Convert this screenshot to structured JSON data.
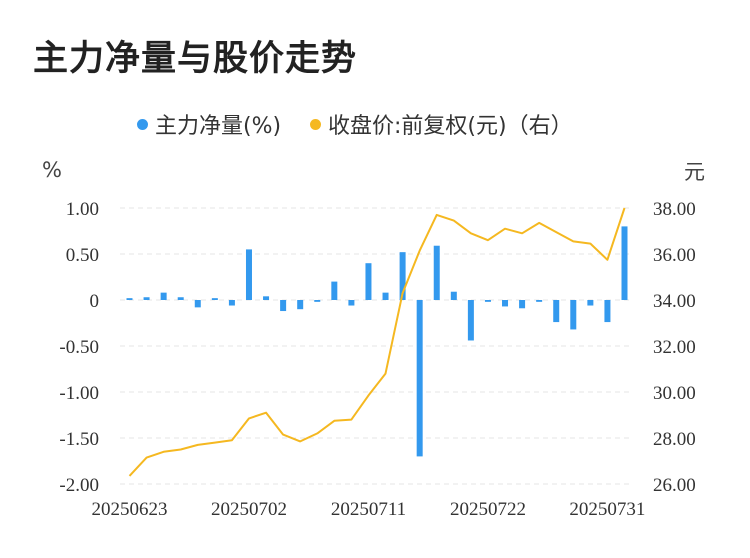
{
  "title": "主力净量与股价走势",
  "legend": {
    "net": "主力净量(%)",
    "price": "收盘价:前复权(元)（右）"
  },
  "colors": {
    "net": "#3399ee",
    "price": "#f5b820",
    "grid": "#e6e6e6",
    "text": "#333333"
  },
  "chart_data": {
    "type": "bar",
    "title": "主力净量与股价走势",
    "y_left_unit": "%",
    "y_right_unit": "元",
    "ylim_left": [
      -2.0,
      1.0
    ],
    "ylim_right": [
      26.0,
      38.0
    ],
    "y_left_ticks": [
      "1.00",
      "0.50",
      "0",
      "-0.50",
      "-1.00",
      "-1.50",
      "-2.00"
    ],
    "y_right_ticks": [
      "38.00",
      "36.00",
      "34.00",
      "32.00",
      "30.00",
      "28.00",
      "26.00"
    ],
    "x_ticks": [
      "20250623",
      "20250702",
      "20250711",
      "20250722",
      "20250731"
    ],
    "x_tick_indices": [
      0,
      7,
      14,
      21,
      28
    ],
    "grid": true,
    "legend_position": "top-center",
    "series": [
      {
        "name": "主力净量(%)",
        "type": "bar",
        "axis": "left",
        "values": [
          0.02,
          0.03,
          0.08,
          0.03,
          -0.08,
          0.02,
          -0.06,
          0.55,
          0.04,
          -0.12,
          -0.1,
          -0.02,
          0.2,
          -0.06,
          0.4,
          0.08,
          0.52,
          -1.7,
          0.59,
          0.09,
          -0.44,
          -0.02,
          -0.07,
          -0.09,
          -0.02,
          -0.24,
          -0.32,
          -0.06,
          -0.24,
          0.8
        ]
      },
      {
        "name": "收盘价:前复权(元)（右）",
        "type": "line",
        "axis": "right",
        "values": [
          26.35,
          27.15,
          27.4,
          27.5,
          27.7,
          27.8,
          27.9,
          28.85,
          29.1,
          28.15,
          27.85,
          28.2,
          28.75,
          28.8,
          29.85,
          30.8,
          34.3,
          36.15,
          37.7,
          37.45,
          36.9,
          36.6,
          37.1,
          36.9,
          37.35,
          36.95,
          36.55,
          36.45,
          35.75,
          38.0
        ]
      }
    ]
  }
}
